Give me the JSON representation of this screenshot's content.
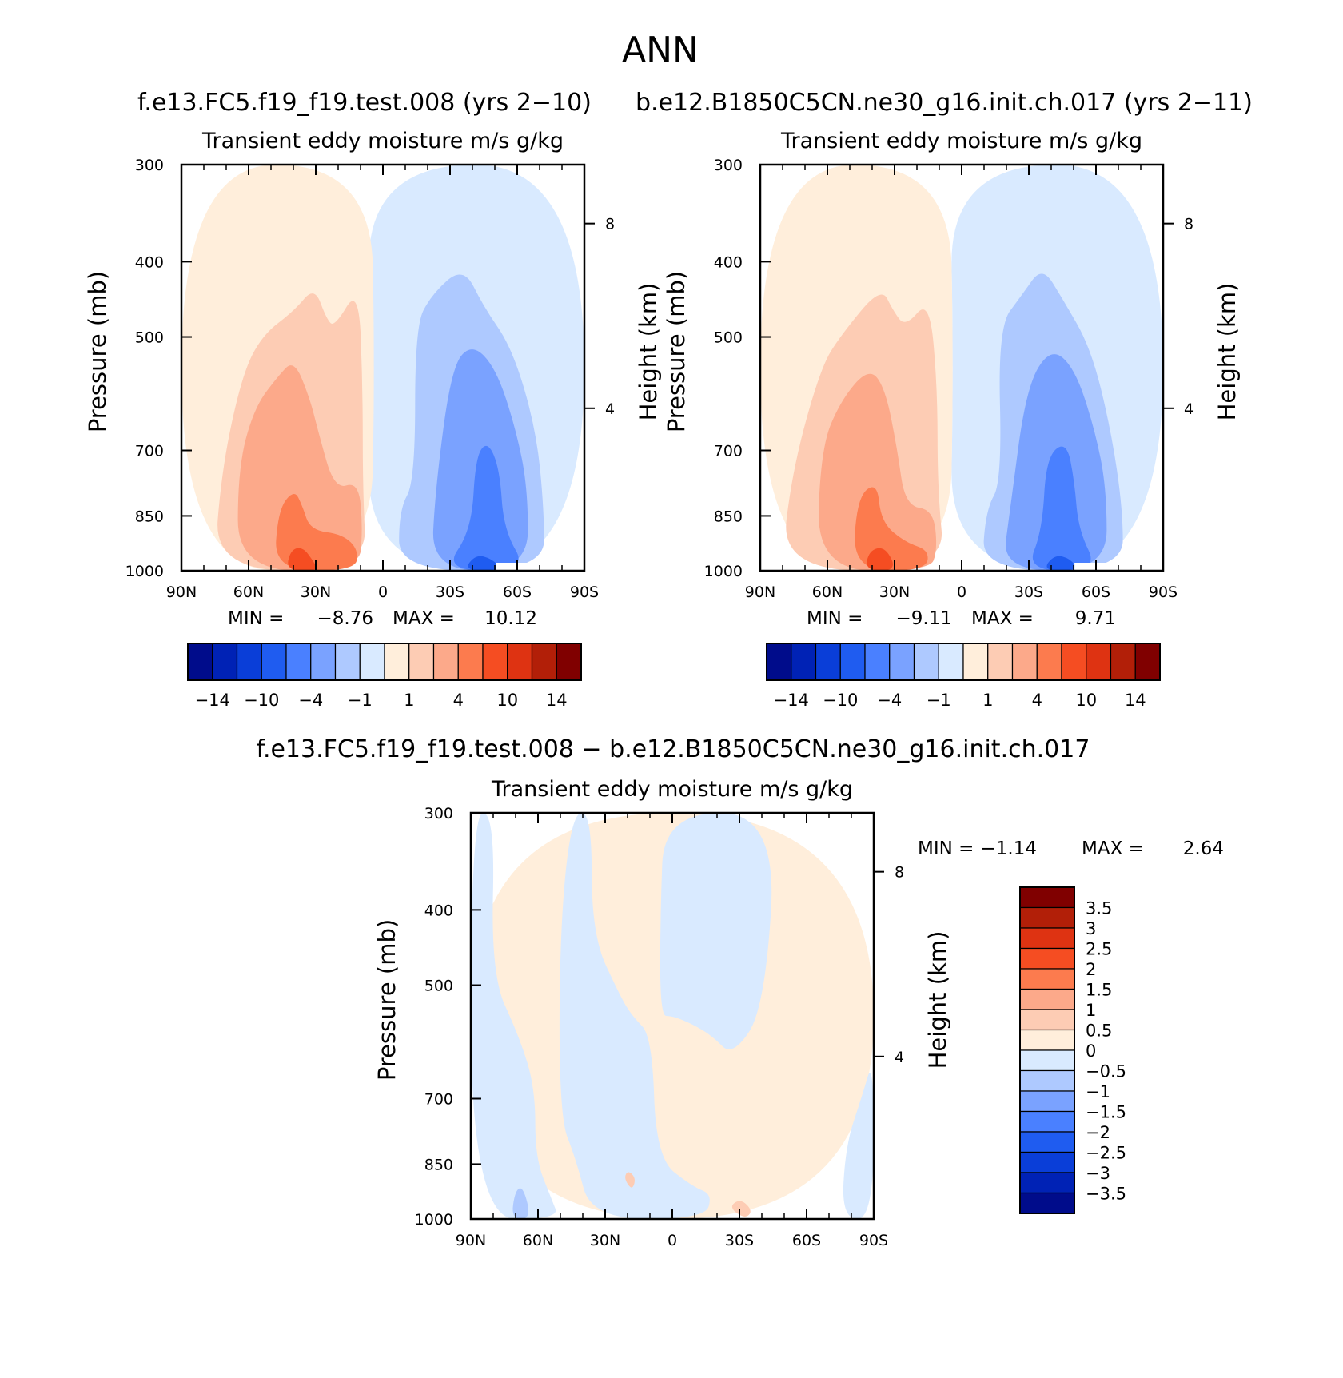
{
  "figure": {
    "season": "ANN",
    "left_run": "f.e13.FC5.f19_f19.test.008 (yrs 2−10)",
    "right_run": "b.e12.B1850C5CN.ne30_g16.init.ch.017 (yrs 2−11)",
    "diff_title": "f.e13.FC5.f19_f19.test.008 − b.e12.B1850C5CN.ne30_g16.init.ch.017"
  },
  "chart_data": [
    {
      "id": "left",
      "type": "heatmap",
      "title": "Transient eddy moisture m/s g/kg",
      "ylabel": "Pressure (mb)",
      "y2label": "Height (km)",
      "x_ticks": [
        "90N",
        "60N",
        "30N",
        "0",
        "30S",
        "60S",
        "90S"
      ],
      "y_ticks": [
        "300",
        "400",
        "500",
        "700",
        "850",
        "1000"
      ],
      "y2_ticks": [
        "8",
        "4"
      ],
      "ylim": [
        1000,
        300
      ],
      "min_label": "MIN =",
      "min": "−8.76",
      "max_label": "MAX =",
      "max": "10.12",
      "colorbar_labels": [
        "−14",
        "−10",
        "−4",
        "−1",
        "1",
        "4",
        "10",
        "14"
      ]
    },
    {
      "id": "right",
      "type": "heatmap",
      "title": "Transient eddy moisture m/s g/kg",
      "ylabel": "Pressure (mb)",
      "y2label": "Height (km)",
      "x_ticks": [
        "90N",
        "60N",
        "30N",
        "0",
        "30S",
        "60S",
        "90S"
      ],
      "y_ticks": [
        "300",
        "400",
        "500",
        "700",
        "850",
        "1000"
      ],
      "y2_ticks": [
        "8",
        "4"
      ],
      "ylim": [
        1000,
        300
      ],
      "min_label": "MIN =",
      "min": "−9.11",
      "max_label": "MAX =",
      "max": "9.71",
      "colorbar_labels": [
        "−14",
        "−10",
        "−4",
        "−1",
        "1",
        "4",
        "10",
        "14"
      ]
    },
    {
      "id": "diff",
      "type": "heatmap",
      "title": "Transient eddy moisture m/s g/kg",
      "ylabel": "Pressure (mb)",
      "y2label": "Height (km)",
      "x_ticks": [
        "90N",
        "60N",
        "30N",
        "0",
        "30S",
        "60S",
        "90S"
      ],
      "y_ticks": [
        "300",
        "400",
        "500",
        "700",
        "850",
        "1000"
      ],
      "y2_ticks": [
        "8",
        "4"
      ],
      "ylim": [
        1000,
        300
      ],
      "min_label": "MIN =",
      "min": "−1.14",
      "max_label": "MAX =",
      "max": "2.64",
      "colorbar_labels": [
        "3.5",
        "3",
        "2.5",
        "2",
        "1.5",
        "1",
        "0.5",
        "0",
        "−0.5",
        "−1",
        "−1.5",
        "−2",
        "−2.5",
        "−3",
        "−3.5"
      ]
    }
  ],
  "palette": [
    "#000c8b",
    "#0022b5",
    "#0a3ed8",
    "#1f5cf0",
    "#4a80ff",
    "#7aa2ff",
    "#aec9ff",
    "#d9eaff",
    "#ffeedb",
    "#fdccb4",
    "#fca98a",
    "#fc7b4e",
    "#f54d22",
    "#de3312",
    "#b21f08",
    "#800000"
  ]
}
